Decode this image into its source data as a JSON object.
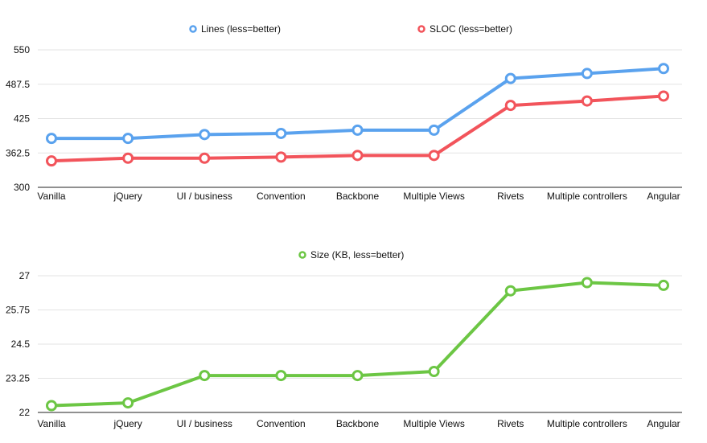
{
  "chart_data": [
    {
      "type": "line",
      "categories": [
        "Vanilla",
        "jQuery",
        "UI / business",
        "Convention",
        "Backbone",
        "Multiple Views",
        "Rivets",
        "Multiple controllers",
        "Angular"
      ],
      "yticks": [
        "300",
        "362.5",
        "425",
        "487.5",
        "550"
      ],
      "ylim": [
        300,
        550
      ],
      "grid": true,
      "legend": "top",
      "series": [
        {
          "name": "Lines (less=better)",
          "color": "#5aa2ee",
          "values": [
            389,
            389,
            396,
            398,
            404,
            404,
            498,
            507,
            516
          ]
        },
        {
          "name": "SLOC (less=better)",
          "color": "#f2545b",
          "values": [
            348,
            353,
            353,
            355,
            358,
            358,
            449,
            457,
            466
          ]
        }
      ]
    },
    {
      "type": "line",
      "categories": [
        "Vanilla",
        "jQuery",
        "UI / business",
        "Convention",
        "Backbone",
        "Multiple Views",
        "Rivets",
        "Multiple controllers",
        "Angular"
      ],
      "yticks": [
        "22",
        "23.25",
        "24.5",
        "25.75",
        "27"
      ],
      "ylim": [
        22,
        27
      ],
      "grid": true,
      "legend": "top",
      "series": [
        {
          "name": "Size (KB, less=better)",
          "color": "#6cc644",
          "values": [
            22.25,
            22.35,
            23.35,
            23.35,
            23.35,
            23.5,
            26.45,
            26.75,
            26.65
          ]
        }
      ]
    }
  ]
}
